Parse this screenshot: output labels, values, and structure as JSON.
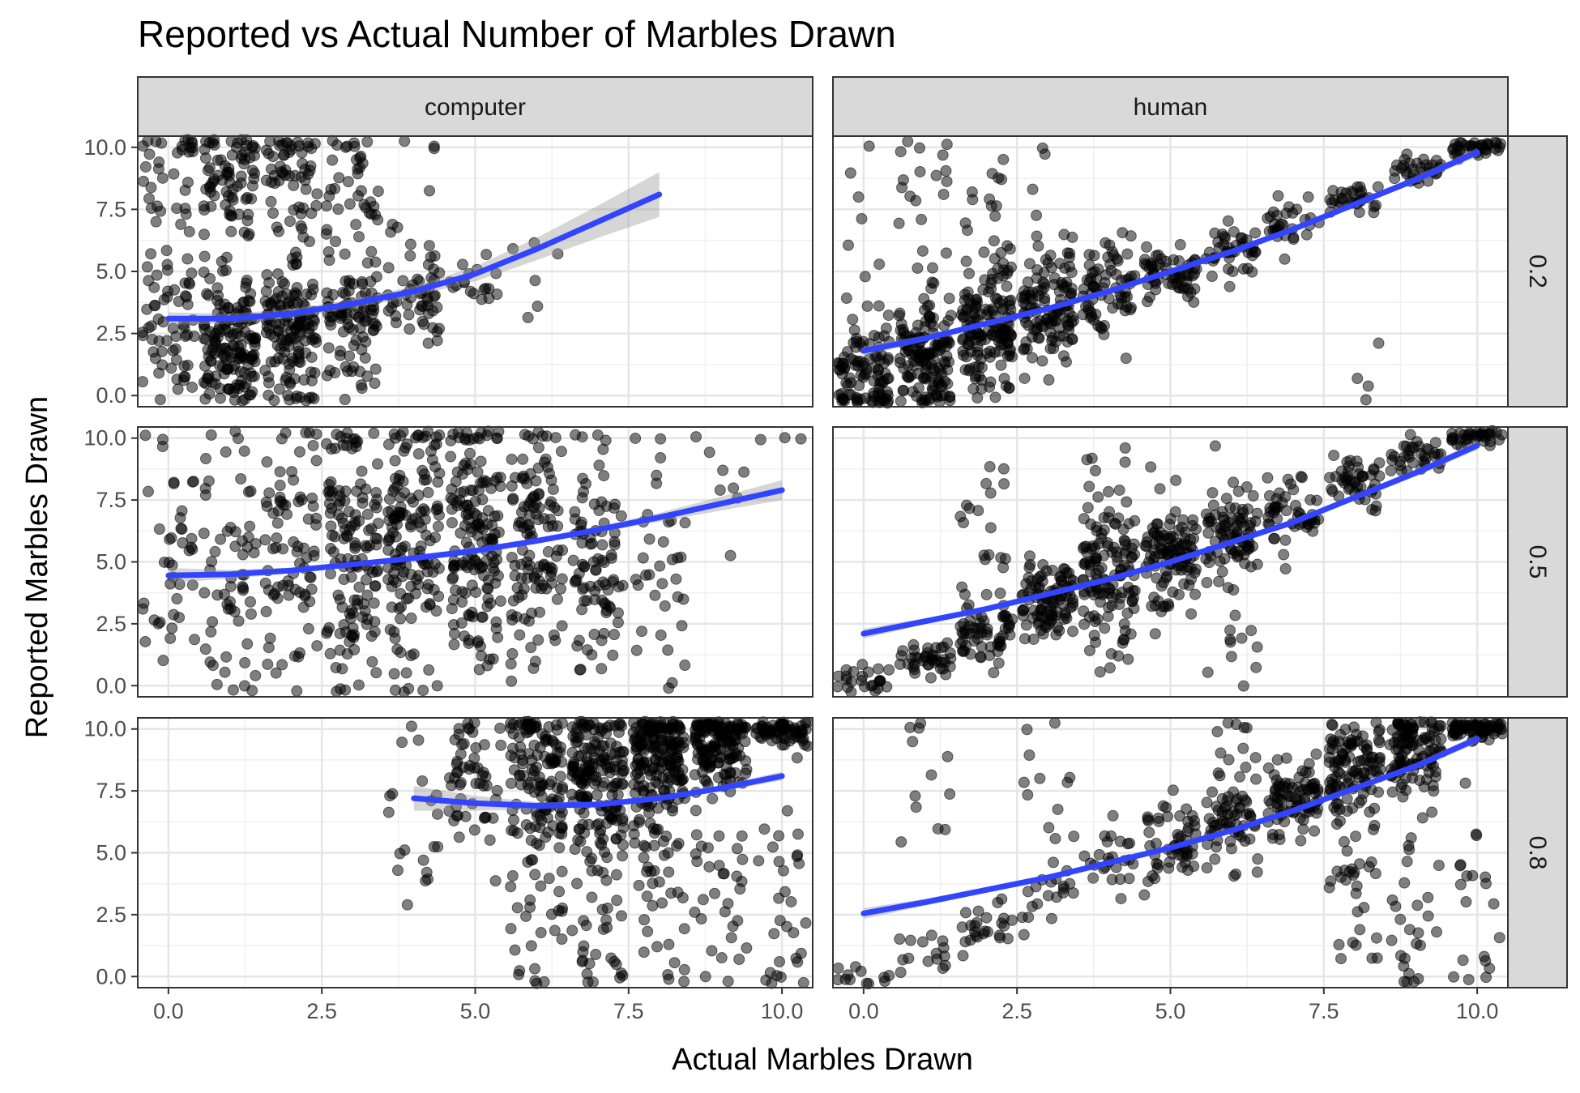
{
  "chart_data": {
    "type": "scatter",
    "title": "Reported vs Actual Number of Marbles Drawn",
    "xlabel": "Actual Marbles Drawn",
    "ylabel": "Reported Marbles Drawn",
    "xlim": [
      -0.5,
      10.5
    ],
    "ylim": [
      -0.45,
      10.45
    ],
    "x_ticks": [
      "0.0",
      "2.5",
      "5.0",
      "7.5",
      "10.0"
    ],
    "y_ticks": [
      "0.0",
      "2.5",
      "5.0",
      "7.5",
      "10.0"
    ],
    "grid": true,
    "facet_cols": [
      "computer",
      "human"
    ],
    "facet_rows": [
      "0.2",
      "0.5",
      "0.8"
    ],
    "point_color": "#000000",
    "point_opacity": 0.5,
    "smooth_color": "#3344ff",
    "ribbon_color": "#999999",
    "panels": [
      {
        "col": "computer",
        "row": "0.2",
        "clusters": [
          [
            0,
            3,
            1.5,
            55
          ],
          [
            1,
            2,
            1.4,
            150
          ],
          [
            2,
            2.6,
            1.3,
            140
          ],
          [
            3,
            3,
            1.2,
            90
          ],
          [
            4,
            4,
            0.9,
            45
          ],
          [
            5,
            4.8,
            0.6,
            18
          ],
          [
            0,
            8.5,
            1.8,
            40
          ],
          [
            1,
            8.8,
            1.5,
            80
          ],
          [
            2,
            8.6,
            1.6,
            60
          ],
          [
            3,
            8.2,
            1.6,
            40
          ],
          [
            4,
            7.5,
            2,
            12
          ],
          [
            6,
            5.5,
            1.2,
            6
          ]
        ],
        "smooth": [
          [
            0,
            3.1
          ],
          [
            1,
            3.1
          ],
          [
            2,
            3.3
          ],
          [
            3,
            3.7
          ],
          [
            4,
            4.2
          ],
          [
            5,
            4.9
          ],
          [
            6,
            5.9
          ],
          [
            7,
            7
          ],
          [
            8,
            8.1
          ]
        ],
        "se": [
          0.25,
          0.2,
          0.18,
          0.18,
          0.2,
          0.3,
          0.45,
          0.65,
          0.9
        ]
      },
      {
        "col": "human",
        "row": "0.2",
        "clusters": [
          [
            0,
            0.8,
            1.2,
            100
          ],
          [
            1,
            1.7,
            1.2,
            140
          ],
          [
            2,
            2.6,
            1.2,
            140
          ],
          [
            3,
            3.3,
            1.1,
            110
          ],
          [
            4,
            4.2,
            0.9,
            70
          ],
          [
            5,
            5,
            0.6,
            60
          ],
          [
            6,
            5.8,
            0.5,
            40
          ],
          [
            7,
            7,
            0.4,
            30
          ],
          [
            8,
            7.9,
            0.3,
            30
          ],
          [
            9,
            9,
            0.3,
            30
          ],
          [
            10,
            10,
            0.2,
            35
          ],
          [
            1,
            7.5,
            1.8,
            20
          ],
          [
            2,
            6.5,
            2,
            25
          ],
          [
            3,
            6,
            1.8,
            15
          ],
          [
            0,
            5.5,
            2.5,
            10
          ],
          [
            8,
            3,
            2.5,
            4
          ]
        ],
        "smooth": [
          [
            0,
            1.8
          ],
          [
            1,
            2.3
          ],
          [
            2,
            2.9
          ],
          [
            3,
            3.5
          ],
          [
            4,
            4.2
          ],
          [
            5,
            5
          ],
          [
            6,
            5.8
          ],
          [
            7,
            6.7
          ],
          [
            8,
            7.7
          ],
          [
            9,
            8.7
          ],
          [
            10,
            9.8
          ]
        ],
        "se": [
          0.2,
          0.12,
          0.1,
          0.08,
          0.08,
          0.08,
          0.09,
          0.1,
          0.12,
          0.14,
          0.18
        ]
      },
      {
        "col": "computer",
        "row": "0.5",
        "clusters": [
          [
            0,
            5,
            2.8,
            40
          ],
          [
            1,
            4.8,
            2.8,
            60
          ],
          [
            2,
            5,
            2.8,
            80
          ],
          [
            3,
            5.5,
            2.8,
            140
          ],
          [
            4,
            5.5,
            2.8,
            150
          ],
          [
            5,
            5.8,
            2.8,
            160
          ],
          [
            6,
            5.8,
            2.6,
            120
          ],
          [
            7,
            5.5,
            2.6,
            90
          ],
          [
            8,
            5,
            2.8,
            35
          ],
          [
            9,
            8.5,
            1.2,
            8
          ],
          [
            10,
            10,
            0.1,
            3
          ]
        ],
        "smooth": [
          [
            0,
            4.45
          ],
          [
            1,
            4.5
          ],
          [
            2,
            4.65
          ],
          [
            3,
            4.9
          ],
          [
            4,
            5.15
          ],
          [
            5,
            5.45
          ],
          [
            6,
            5.85
          ],
          [
            7,
            6.3
          ],
          [
            8,
            6.8
          ],
          [
            9,
            7.35
          ],
          [
            10,
            7.9
          ]
        ],
        "se": [
          0.3,
          0.18,
          0.12,
          0.08,
          0.07,
          0.07,
          0.08,
          0.12,
          0.18,
          0.28,
          0.4
        ]
      },
      {
        "col": "human",
        "row": "0.5",
        "clusters": [
          [
            0,
            0.2,
            0.3,
            25
          ],
          [
            1,
            1,
            0.4,
            40
          ],
          [
            2,
            2.2,
            0.6,
            60
          ],
          [
            3,
            3.4,
            0.8,
            100
          ],
          [
            4,
            4.5,
            1.1,
            110
          ],
          [
            5,
            5.2,
            1.1,
            110
          ],
          [
            6,
            6.1,
            1,
            85
          ],
          [
            7,
            7.1,
            0.7,
            50
          ],
          [
            8,
            8.1,
            0.5,
            45
          ],
          [
            9,
            9.2,
            0.4,
            35
          ],
          [
            10,
            10,
            0.15,
            35
          ],
          [
            2,
            6.5,
            2.5,
            20
          ],
          [
            4,
            8,
            2,
            15
          ],
          [
            6,
            1.5,
            1,
            12
          ],
          [
            4,
            2,
            1.2,
            10
          ]
        ],
        "smooth": [
          [
            0,
            2.1
          ],
          [
            1,
            2.6
          ],
          [
            2,
            3.1
          ],
          [
            3,
            3.7
          ],
          [
            4,
            4.3
          ],
          [
            5,
            5
          ],
          [
            6,
            5.8
          ],
          [
            7,
            6.6
          ],
          [
            8,
            7.6
          ],
          [
            9,
            8.6
          ],
          [
            10,
            9.7
          ]
        ],
        "se": [
          0.2,
          0.12,
          0.1,
          0.08,
          0.07,
          0.07,
          0.08,
          0.1,
          0.12,
          0.14,
          0.18
        ]
      },
      {
        "col": "computer",
        "row": "0.8",
        "clusters": [
          [
            4,
            6.5,
            2.2,
            20
          ],
          [
            5,
            8.5,
            1.5,
            55
          ],
          [
            6,
            8.2,
            1.6,
            120
          ],
          [
            7,
            8.2,
            1.8,
            160
          ],
          [
            8,
            9,
            1.3,
            180
          ],
          [
            9,
            9.5,
            0.9,
            140
          ],
          [
            10,
            10,
            0.3,
            70
          ],
          [
            6,
            3,
            2.5,
            40
          ],
          [
            7,
            3,
            2.5,
            45
          ],
          [
            8,
            3.5,
            2.5,
            45
          ],
          [
            9,
            3.5,
            2.5,
            40
          ],
          [
            10,
            3,
            2.5,
            30
          ]
        ],
        "smooth": [
          [
            4,
            7.2
          ],
          [
            5,
            7
          ],
          [
            6,
            6.9
          ],
          [
            7,
            6.95
          ],
          [
            8,
            7.2
          ],
          [
            9,
            7.6
          ],
          [
            10,
            8.1
          ]
        ],
        "se": [
          0.5,
          0.3,
          0.15,
          0.1,
          0.1,
          0.12,
          0.18
        ]
      },
      {
        "col": "human",
        "row": "0.8",
        "clusters": [
          [
            0,
            0,
            0.3,
            12
          ],
          [
            1,
            0.8,
            0.4,
            15
          ],
          [
            2,
            2,
            0.5,
            25
          ],
          [
            3,
            3.2,
            0.5,
            20
          ],
          [
            4,
            4.5,
            0.8,
            25
          ],
          [
            5,
            5.3,
            0.8,
            55
          ],
          [
            6,
            6.2,
            0.8,
            60
          ],
          [
            7,
            7.2,
            0.8,
            85
          ],
          [
            8,
            8.2,
            1,
            110
          ],
          [
            9,
            9.2,
            0.8,
            110
          ],
          [
            10,
            10,
            0.2,
            70
          ],
          [
            8,
            3.5,
            2,
            30
          ],
          [
            9,
            3,
            2.5,
            30
          ],
          [
            10,
            3,
            2.5,
            20
          ],
          [
            1,
            7.5,
            2,
            12
          ],
          [
            3,
            8,
            2,
            12
          ],
          [
            6,
            8.5,
            1.5,
            15
          ]
        ],
        "smooth": [
          [
            0,
            2.55
          ],
          [
            1,
            3
          ],
          [
            2,
            3.5
          ],
          [
            3,
            4
          ],
          [
            4,
            4.6
          ],
          [
            5,
            5.2
          ],
          [
            6,
            5.9
          ],
          [
            7,
            6.7
          ],
          [
            8,
            7.6
          ],
          [
            9,
            8.5
          ],
          [
            10,
            9.6
          ]
        ],
        "se": [
          0.22,
          0.14,
          0.11,
          0.09,
          0.08,
          0.08,
          0.08,
          0.09,
          0.11,
          0.13,
          0.17
        ]
      }
    ]
  }
}
